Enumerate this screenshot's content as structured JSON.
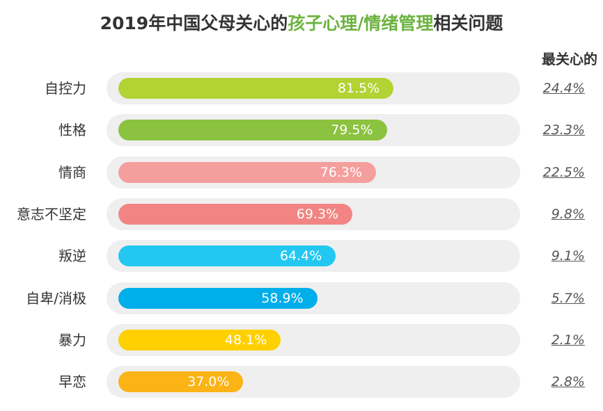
{
  "title": {
    "part1": "2019年中国父母关心的",
    "highlight": "孩子心理/情绪管理",
    "part2": "相关问题"
  },
  "column_header": "最关心的",
  "colors": {
    "title_highlight": "#6cb33f",
    "track": "#efefef"
  },
  "chart_data": {
    "type": "bar",
    "orientation": "horizontal",
    "categories": [
      "自控力",
      "性格",
      "情商",
      "意志不坚定",
      "叛逆",
      "自卑/消极",
      "暴力",
      "早恋"
    ],
    "values": [
      81.5,
      79.5,
      76.3,
      69.3,
      64.4,
      58.9,
      48.1,
      37.0
    ],
    "value_labels": [
      "81.5%",
      "79.5%",
      "76.3%",
      "69.3%",
      "64.4%",
      "58.9%",
      "48.1%",
      "37.0%"
    ],
    "most_concerned": [
      24.4,
      23.3,
      22.5,
      9.8,
      9.1,
      5.7,
      2.1,
      2.8
    ],
    "most_concerned_labels": [
      "24.4%",
      "23.3%",
      "22.5%",
      "9.8%",
      "9.1%",
      "5.7%",
      "2.1%",
      "2.8%"
    ],
    "bar_colors": [
      "#b3d234",
      "#8bc23f",
      "#f59e9e",
      "#f28583",
      "#22c8f1",
      "#00aeea",
      "#ffd000",
      "#fbb316"
    ],
    "xlim": [
      0,
      100
    ],
    "grid": false
  }
}
